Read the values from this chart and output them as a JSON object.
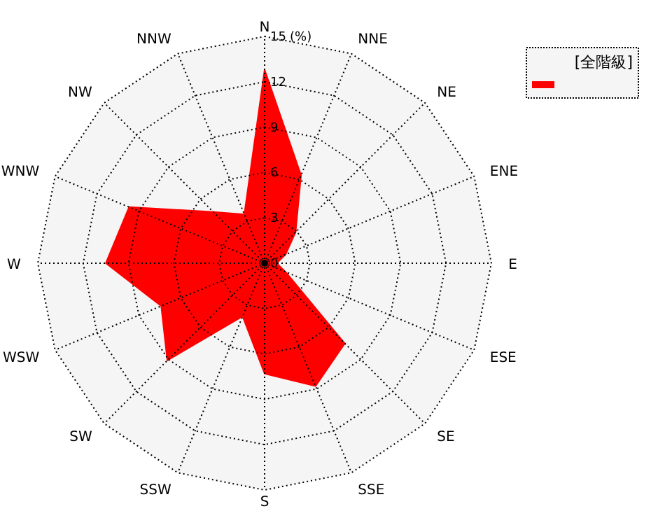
{
  "chart_data": {
    "type": "radar",
    "categories": [
      "N",
      "NNE",
      "NE",
      "ENE",
      "E",
      "ESE",
      "SE",
      "SSE",
      "S",
      "SSW",
      "SW",
      "WSW",
      "W",
      "WNW",
      "NW",
      "NNW"
    ],
    "series": [
      {
        "name": "[全階級]",
        "color": "#ff0000",
        "values": [
          12.8,
          6.3,
          2.9,
          1.5,
          0.8,
          1.5,
          7.5,
          8.8,
          7.3,
          3.8,
          9.1,
          7.4,
          10.5,
          9.7,
          4.8,
          3.5
        ]
      }
    ],
    "ylim": [
      0,
      15
    ],
    "yticks": [
      0,
      3,
      6,
      9,
      12,
      15
    ],
    "ylabel": "(%)",
    "grid": true,
    "legend": "top right"
  }
}
